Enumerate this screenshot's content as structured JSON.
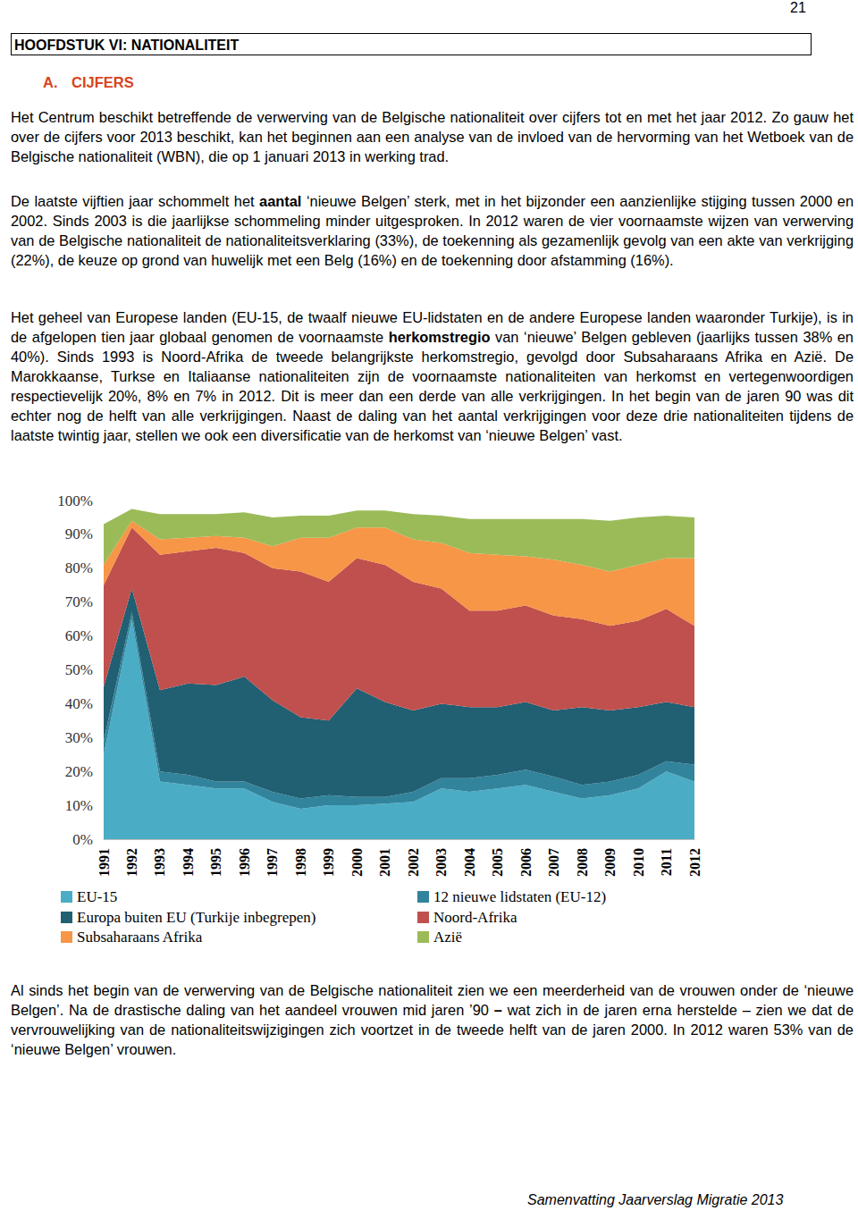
{
  "page_number": "21",
  "header": {
    "title": "HOOFDSTUK VI: NATIONALITEIT"
  },
  "section": {
    "number": "A.",
    "title": "CIJFERS"
  },
  "paragraphs": [
    [
      {
        "text": "Het Centrum beschikt betreffende de verwerving van de Belgische nationaliteit over cijfers tot en met het jaar 2012. Zo gauw het over de cijfers voor 2013 beschikt, kan het beginnen aan een analyse van de invloed van de hervorming van het Wetboek van de Belgische nationaliteit (WBN), die op 1 januari 2013 in werking trad."
      }
    ],
    [
      {
        "text": "De laatste vijftien jaar schommelt het "
      },
      {
        "text": "aantal",
        "bold": true
      },
      {
        "text": " ‘nieuwe Belgen’ sterk, met in het bijzonder een aanzienlijke stijging tussen 2000 en 2002. Sinds 2003 is die jaarlijkse schommeling minder uitgesproken. In 2012 waren de vier voornaamste wijzen van verwerving van de Belgische nationaliteit de nationaliteitsverklaring (33%), de toekenning als gezamenlijk gevolg van een akte van verkrijging (22%), de keuze op grond van huwelijk met een Belg (16%) en de toekenning door afstamming (16%)."
      }
    ],
    [
      {
        "text": "Het geheel van Europese landen (EU-15, de twaalf nieuwe EU-lidstaten en de andere Europese landen waaronder Turkije), is in de afgelopen tien jaar globaal genomen de voornaamste "
      },
      {
        "text": "herkomstregio",
        "bold": true
      },
      {
        "text": " van ‘nieuwe’ Belgen gebleven (jaarlijks tussen 38% en 40%). Sinds 1993 is Noord-Afrika de tweede belangrijkste herkomstregio, gevolgd door Subsaharaans Afrika en Azië. De Marokkaanse, Turkse en Italiaanse nationaliteiten zijn de voornaamste nationaliteiten van herkomst en vertegenwoordigen respectievelijk 20%, 8% en 7% in 2012. Dit is meer dan een derde van alle verkrijgingen. In het begin van de jaren 90 was dit echter nog de helft van alle verkrijgingen. Naast de daling van het aantal verkrijgingen voor deze drie nationaliteiten tijdens de laatste twintig jaar, stellen we ook een diversificatie van de herkomst van ‘nieuwe Belgen’ vast."
      }
    ],
    [
      {
        "text": "Al sinds het begin van de verwerving van de Belgische nationaliteit zien we een meerderheid van de vrouwen onder de ‘nieuwe Belgen’. Na de drastische daling van het aandeel vrouwen mid jaren ’90 "
      },
      {
        "text": "–",
        "bold": true
      },
      {
        "text": " wat zich in de jaren erna herstelde – zien we dat de vervrouwelijking van de nationaliteitswijzigingen zich voortzet in de tweede helft van de jaren 2000. In 2012 waren 53% van de ‘nieuwe Belgen’ vrouwen."
      }
    ]
  ],
  "chart_data": {
    "type": "area",
    "stacked": true,
    "grid": false,
    "legend": "bottom",
    "categories": [
      "1991",
      "1992",
      "1993",
      "1994",
      "1995",
      "1996",
      "1997",
      "1998",
      "1999",
      "2000",
      "2001",
      "2002",
      "2003",
      "2004",
      "2005",
      "2006",
      "2007",
      "2008",
      "2009",
      "2010",
      "2011",
      "2012"
    ],
    "ylim": [
      0,
      100
    ],
    "yticks": [
      {
        "value": 0,
        "label": "0%"
      },
      {
        "value": 10,
        "label": "10%"
      },
      {
        "value": 20,
        "label": "20%"
      },
      {
        "value": 30,
        "label": "30%"
      },
      {
        "value": 40,
        "label": "40%"
      },
      {
        "value": 50,
        "label": "50%"
      },
      {
        "value": 60,
        "label": "60%"
      },
      {
        "value": 70,
        "label": "70%"
      },
      {
        "value": 80,
        "label": "80%"
      },
      {
        "value": 90,
        "label": "90%"
      },
      {
        "value": 100,
        "label": "100%"
      }
    ],
    "series": [
      {
        "name": "EU-15",
        "color": "#4bacc6",
        "values": [
          25,
          65,
          17,
          16,
          15,
          15,
          11,
          9,
          10,
          10,
          10.5,
          11,
          15,
          14,
          15,
          16,
          14,
          12,
          13,
          15,
          20,
          17
        ]
      },
      {
        "name": "12 nieuwe lidstaten (EU-12)",
        "color": "#31849b",
        "values": [
          4,
          2,
          3,
          3,
          2,
          2,
          3,
          3,
          3,
          2.5,
          2,
          3,
          3,
          4,
          4,
          4.5,
          4.5,
          4,
          4,
          4,
          3,
          5
        ]
      },
      {
        "name": "Europa buiten EU (Turkije inbegrepen)",
        "color": "#215f73",
        "values": [
          16,
          7,
          24,
          27,
          28.5,
          31,
          27,
          24,
          22,
          32,
          28,
          24,
          22,
          21,
          20,
          20,
          19.5,
          23,
          21,
          20,
          17.5,
          17
        ]
      },
      {
        "name": "Noord-Afrika",
        "color": "#c0504d",
        "values": [
          30,
          18,
          40,
          39,
          40.5,
          36.5,
          39,
          43,
          41,
          38.5,
          40.5,
          38,
          34,
          28.5,
          28.5,
          28.5,
          28,
          26,
          25,
          25.5,
          27.5,
          24
        ]
      },
      {
        "name": "Subsaharaans Afrika",
        "color": "#f79646",
        "values": [
          6,
          2,
          4.5,
          4,
          3.5,
          4.5,
          6.5,
          10,
          13,
          9,
          11,
          12.5,
          13.5,
          17,
          16.5,
          14.5,
          16.5,
          16,
          16,
          16.5,
          15,
          20
        ]
      },
      {
        "name": "Azië",
        "color": "#9bbb59",
        "values": [
          12,
          3.5,
          7.5,
          7,
          6.5,
          7.5,
          8.5,
          6.5,
          6.5,
          5,
          5,
          7.5,
          8,
          10,
          10.5,
          11,
          12,
          13.5,
          15,
          14,
          12.5,
          12
        ]
      }
    ]
  },
  "footer": "Samenvatting Jaarverslag Migratie 2013"
}
